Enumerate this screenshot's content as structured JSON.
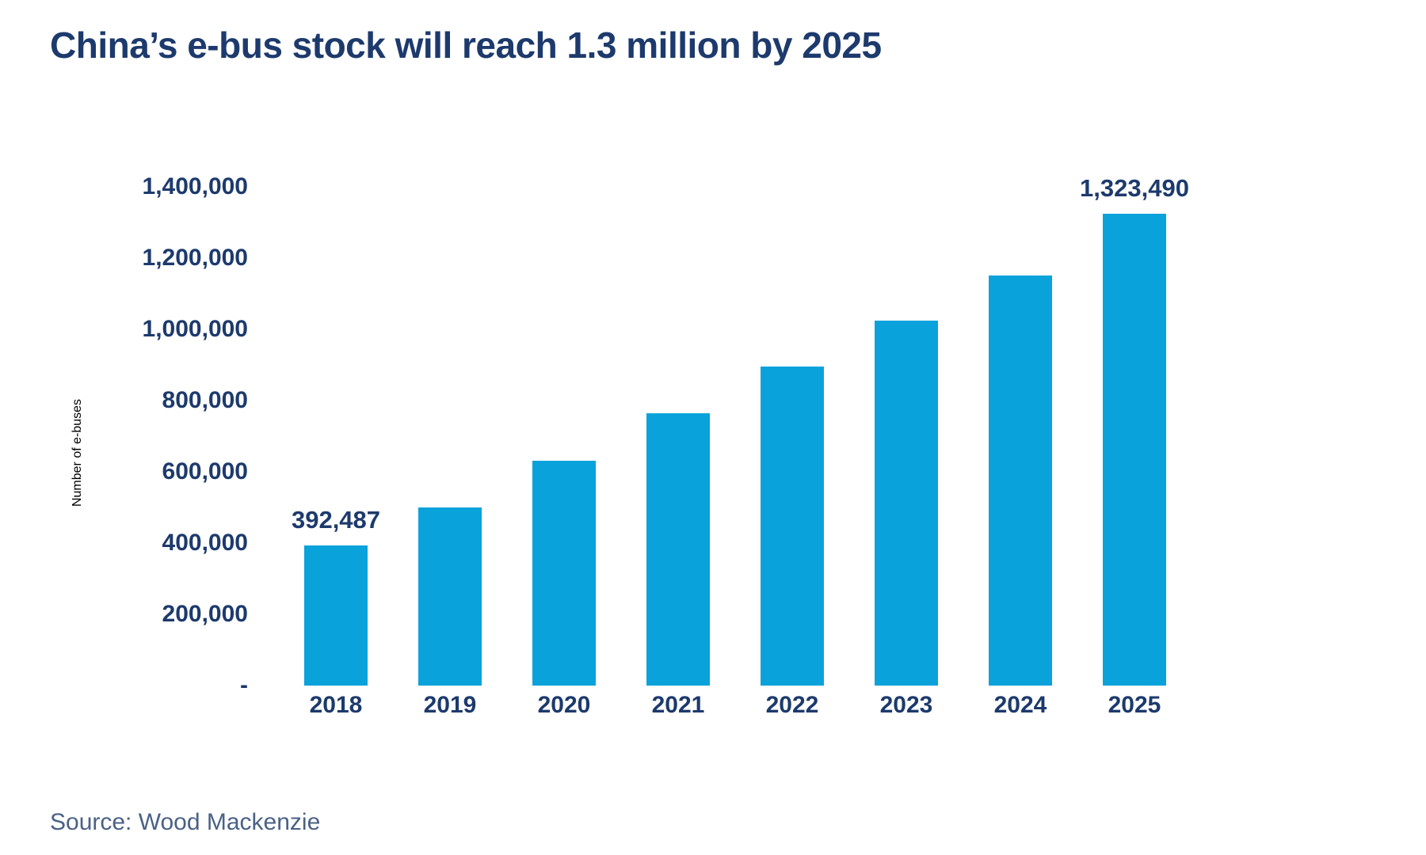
{
  "title": "China’s e-bus stock will reach 1.3 million by 2025",
  "source": "Source: Wood Mackenzie",
  "colors": {
    "bar": "#0aa2db",
    "text_navy": "#1d3a6d",
    "source_text": "#4a6186",
    "background": "#ffffff"
  },
  "chart_data": {
    "type": "bar",
    "title": "China’s e-bus stock will reach 1.3 million by 2025",
    "xlabel": "",
    "ylabel": "Number of e-buses",
    "categories": [
      "2018",
      "2019",
      "2020",
      "2021",
      "2022",
      "2023",
      "2024",
      "2025"
    ],
    "values": [
      392487,
      500000,
      632000,
      765000,
      895000,
      1025000,
      1152000,
      1323490
    ],
    "point_labels": [
      "392,487",
      "",
      "",
      "",
      "",
      "",
      "",
      "1,323,490"
    ],
    "ylim": [
      0,
      1400000
    ],
    "ytick_interval": 200000,
    "ytick_labels_top_to_bottom": [
      "1,400,000",
      "1,200,000",
      "1,000,000",
      "800,000",
      "600,000",
      "400,000",
      "200,000",
      "-"
    ],
    "grid": false,
    "legend": false,
    "bar_color": "#0aa2db"
  }
}
